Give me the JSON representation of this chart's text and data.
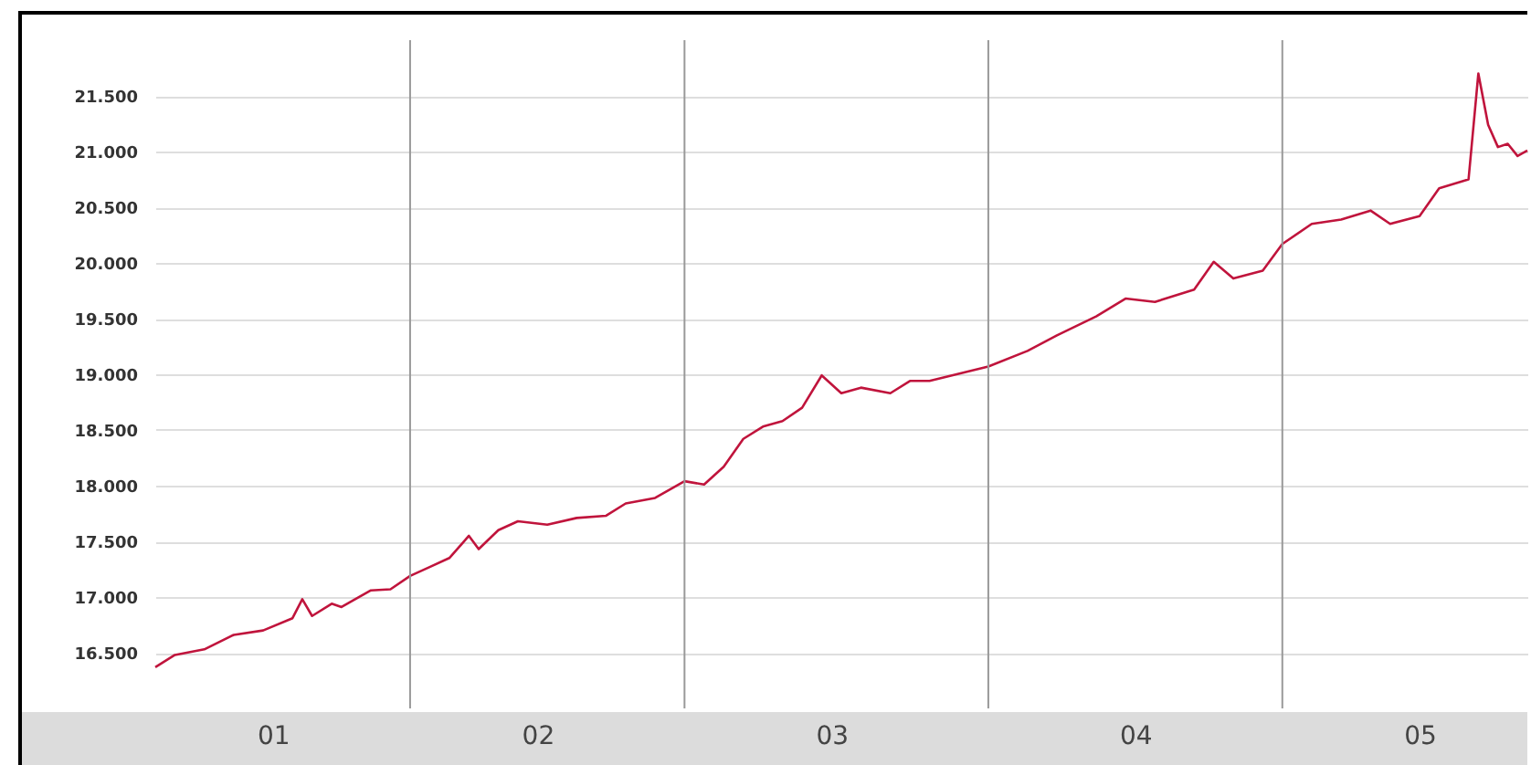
{
  "chart_data": {
    "type": "line",
    "x": [
      "--01-06",
      "--01-08",
      "--01-11",
      "--01-14",
      "--01-17",
      "--01-20",
      "--01-21",
      "--01-22",
      "--01-24",
      "--01-25",
      "--01-28",
      "--01-30",
      "--02-01",
      "--02-03",
      "--02-05",
      "--02-07",
      "--02-08",
      "--02-10",
      "--02-12",
      "--02-15",
      "--02-18",
      "--02-21",
      "--02-23",
      "--02-26",
      "--03-01",
      "--03-03",
      "--03-05",
      "--03-07",
      "--03-09",
      "--03-11",
      "--03-13",
      "--03-15",
      "--03-17",
      "--03-19",
      "--03-22",
      "--03-24",
      "--03-26",
      "--04-01",
      "--04-05",
      "--04-08",
      "--04-12",
      "--04-15",
      "--04-18",
      "--04-22",
      "--04-24",
      "--04-26",
      "--04-29",
      "--05-01",
      "--05-04",
      "--05-07",
      "--05-10",
      "--05-12",
      "--05-15",
      "--05-17",
      "--05-20",
      "--05-21",
      "--05-22",
      "--05-23",
      "--05-24",
      "--05-25",
      "--05-26"
    ],
    "series": [
      {
        "color": "#c0143c",
        "values": [
          16370,
          16480,
          16530,
          16660,
          16700,
          16810,
          16980,
          16830,
          16940,
          16910,
          17060,
          17070,
          17190,
          17270,
          17350,
          17550,
          17430,
          17600,
          17680,
          17650,
          17710,
          17730,
          17840,
          17890,
          18040,
          18010,
          18170,
          18420,
          18530,
          18580,
          18700,
          18990,
          18830,
          18880,
          18830,
          18940,
          18940,
          19070,
          19210,
          19350,
          19520,
          19680,
          19650,
          19760,
          20010,
          19860,
          19930,
          20170,
          20350,
          20390,
          20470,
          20350,
          20420,
          20670,
          20750,
          21700,
          21240,
          21040,
          21070,
          20960,
          21010
        ]
      }
    ],
    "xlim": [
      "--01-06",
      "--05-26"
    ],
    "xticks": [
      {
        "value": "--01-18",
        "label": "01"
      },
      {
        "value": "--02-01",
        "label": null
      },
      {
        "value": "--02-14",
        "label": "02"
      },
      {
        "value": "--03-01",
        "label": null
      },
      {
        "value": "--03-16",
        "label": "03"
      },
      {
        "value": "--04-01",
        "label": null
      },
      {
        "value": "--04-16",
        "label": "04"
      },
      {
        "value": "--05-01",
        "label": null
      },
      {
        "value": "--05-15",
        "label": "05"
      }
    ],
    "ylim": [
      16000,
      22000
    ],
    "yticks": [
      {
        "value": 16500,
        "label": "16.500"
      },
      {
        "value": 17000,
        "label": "17.000"
      },
      {
        "value": 17500,
        "label": "17.500"
      },
      {
        "value": 18000,
        "label": "18.000"
      },
      {
        "value": 18500,
        "label": "18.500"
      },
      {
        "value": 19000,
        "label": "19.000"
      },
      {
        "value": 19500,
        "label": "19.500"
      },
      {
        "value": 20000,
        "label": "20.000"
      },
      {
        "value": 20500,
        "label": "20.500"
      },
      {
        "value": 21000,
        "label": "21.000"
      },
      {
        "value": 21500,
        "label": "21.500"
      }
    ],
    "grid": true
  }
}
